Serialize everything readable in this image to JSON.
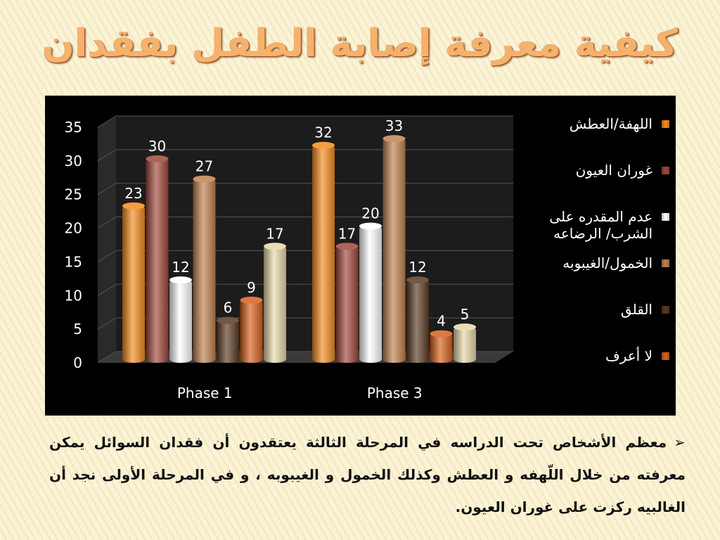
{
  "slide": {
    "title": "كيفية معرفة إصابة الطفل بفقدان",
    "bullet_symbol": "➢",
    "paragraph": "معظم الأشخاص تحت الدراسه في المرحلة الثالثة يعتقدون أن فقدان السوائل يمكن معرفته من خلال اللّهفه و العطش وكذلك الخمول و الغيبوبه ، و في المرحلة الأولى نجد أن الغالبيه ركزت على غوران العيون."
  },
  "chart_data": {
    "type": "bar",
    "categories": [
      "Phase 1",
      "Phase 3"
    ],
    "series": [
      {
        "name": "اللهفة/العطش",
        "values": [
          23,
          32
        ],
        "color": "#f28c1e"
      },
      {
        "name": "غوران العيون",
        "values": [
          30,
          17
        ],
        "color": "#a0483a"
      },
      {
        "name": "عدم المقدره على الشرب/ الرضاعه",
        "values": [
          12,
          20
        ],
        "color": "#ffffff"
      },
      {
        "name": "الخمول/الغيبوبه",
        "values": [
          27,
          33
        ],
        "color": "#c0834f"
      },
      {
        "name": "القلق",
        "values": [
          6,
          12
        ],
        "color": "#5a3a22"
      },
      {
        "name": "لا أعرف",
        "values": [
          9,
          4
        ],
        "color": "#d8601c"
      },
      {
        "name": "",
        "values": [
          17,
          5
        ],
        "color": "#e8d8a8"
      }
    ],
    "ylim": [
      0,
      35
    ],
    "yticks": [
      "0",
      "5",
      "10",
      "15",
      "20",
      "25",
      "30",
      "35"
    ],
    "grid": true,
    "legend_position": "right"
  }
}
